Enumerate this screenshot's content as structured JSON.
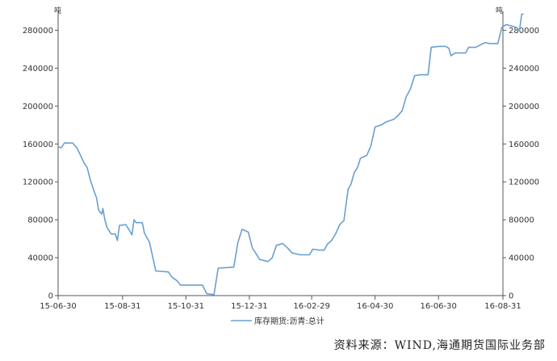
{
  "chart_data": {
    "type": "line",
    "unit_left": "吨",
    "unit_right": "吨",
    "ylim": [
      0,
      300000
    ],
    "y_ticks": [
      0,
      40000,
      80000,
      120000,
      160000,
      200000,
      240000,
      280000
    ],
    "y_tick_labels": [
      "0",
      "40000",
      "80000",
      "120000",
      "160000",
      "200000",
      "240000",
      "280000"
    ],
    "x_ticks": [
      "2015-06-30",
      "2015-08-31",
      "2015-10-31",
      "2015-12-31",
      "2016-02-29",
      "2016-04-30",
      "2016-06-30",
      "2016-08-31"
    ],
    "x_tick_labels": [
      "15-06-30",
      "15-08-31",
      "15-10-31",
      "15-12-31",
      "16-02-29",
      "16-04-30",
      "16-06-30",
      "16-08-31"
    ],
    "grid": false,
    "legend_position": "bottom-center",
    "series": [
      {
        "name": "库存期货:沥青:总计",
        "color": "#6a9fd0",
        "points": [
          [
            "2015-06-30",
            157000
          ],
          [
            "2015-07-03",
            156000
          ],
          [
            "2015-07-06",
            161000
          ],
          [
            "2015-07-14",
            161000
          ],
          [
            "2015-07-18",
            156000
          ],
          [
            "2015-07-22",
            147000
          ],
          [
            "2015-07-25",
            140000
          ],
          [
            "2015-07-28",
            135000
          ],
          [
            "2015-07-31",
            122000
          ],
          [
            "2015-08-03",
            112000
          ],
          [
            "2015-08-06",
            103000
          ],
          [
            "2015-08-08",
            90000
          ],
          [
            "2015-08-11",
            86000
          ],
          [
            "2015-08-12",
            92000
          ],
          [
            "2015-08-14",
            80000
          ],
          [
            "2015-08-16",
            72000
          ],
          [
            "2015-08-20",
            65000
          ],
          [
            "2015-08-24",
            65000
          ],
          [
            "2015-08-26",
            58000
          ],
          [
            "2015-08-28",
            74000
          ],
          [
            "2015-09-03",
            75000
          ],
          [
            "2015-09-06",
            70000
          ],
          [
            "2015-09-09",
            64000
          ],
          [
            "2015-09-11",
            80000
          ],
          [
            "2015-09-13",
            77000
          ],
          [
            "2015-09-19",
            77000
          ],
          [
            "2015-09-21",
            66000
          ],
          [
            "2015-09-26",
            56000
          ],
          [
            "2015-09-30",
            36000
          ],
          [
            "2015-10-02",
            26000
          ],
          [
            "2015-10-14",
            25000
          ],
          [
            "2015-10-18",
            19000
          ],
          [
            "2015-10-22",
            16000
          ],
          [
            "2015-10-26",
            11000
          ],
          [
            "2015-11-16",
            11000
          ],
          [
            "2015-11-20",
            2000
          ],
          [
            "2015-11-27",
            1000
          ],
          [
            "2015-12-01",
            29000
          ],
          [
            "2015-12-16",
            30000
          ],
          [
            "2015-12-20",
            56000
          ],
          [
            "2015-12-24",
            70000
          ],
          [
            "2015-12-30",
            67000
          ],
          [
            "2016-01-03",
            50000
          ],
          [
            "2016-01-06",
            45000
          ],
          [
            "2016-01-10",
            38000
          ],
          [
            "2016-01-18",
            36000
          ],
          [
            "2016-01-22",
            40000
          ],
          [
            "2016-01-26",
            53000
          ],
          [
            "2016-02-01",
            55000
          ],
          [
            "2016-02-06",
            50000
          ],
          [
            "2016-02-10",
            45000
          ],
          [
            "2016-02-18",
            43000
          ],
          [
            "2016-02-23",
            43000
          ],
          [
            "2016-02-27",
            43000
          ],
          [
            "2016-03-01",
            49000
          ],
          [
            "2016-03-07",
            48000
          ],
          [
            "2016-03-12",
            48000
          ],
          [
            "2016-03-15",
            54000
          ],
          [
            "2016-03-19",
            58000
          ],
          [
            "2016-03-23",
            65000
          ],
          [
            "2016-03-27",
            75000
          ],
          [
            "2016-03-31",
            79000
          ],
          [
            "2016-04-04",
            112000
          ],
          [
            "2016-04-07",
            118000
          ],
          [
            "2016-04-10",
            130000
          ],
          [
            "2016-04-13",
            135000
          ],
          [
            "2016-04-16",
            145000
          ],
          [
            "2016-04-22",
            148000
          ],
          [
            "2016-04-26",
            158000
          ],
          [
            "2016-04-30",
            178000
          ],
          [
            "2016-05-06",
            180000
          ],
          [
            "2016-05-10",
            183000
          ],
          [
            "2016-05-18",
            186000
          ],
          [
            "2016-05-22",
            190000
          ],
          [
            "2016-05-26",
            195000
          ],
          [
            "2016-05-30",
            210000
          ],
          [
            "2016-06-03",
            218000
          ],
          [
            "2016-06-07",
            232000
          ],
          [
            "2016-06-12",
            233000
          ],
          [
            "2016-06-20",
            233000
          ],
          [
            "2016-06-23",
            262000
          ],
          [
            "2016-06-30",
            263000
          ],
          [
            "2016-07-07",
            263000
          ],
          [
            "2016-07-10",
            261000
          ],
          [
            "2016-07-12",
            253000
          ],
          [
            "2016-07-16",
            256000
          ],
          [
            "2016-07-26",
            256000
          ],
          [
            "2016-07-29",
            262000
          ],
          [
            "2016-08-05",
            262000
          ],
          [
            "2016-08-10",
            265000
          ],
          [
            "2016-08-14",
            267000
          ],
          [
            "2016-08-18",
            266000
          ],
          [
            "2016-08-26",
            266000
          ],
          [
            "2016-08-30",
            283000
          ],
          [
            "2016-09-03",
            286000
          ],
          [
            "2016-09-10",
            284000
          ],
          [
            "2016-09-13",
            283000
          ],
          [
            "2016-09-16",
            280000
          ],
          [
            "2016-09-18",
            297000
          ],
          [
            "2016-09-20",
            297000
          ]
        ]
      }
    ]
  },
  "source_text": "资料来源：WIND,海通期货国际业务部"
}
